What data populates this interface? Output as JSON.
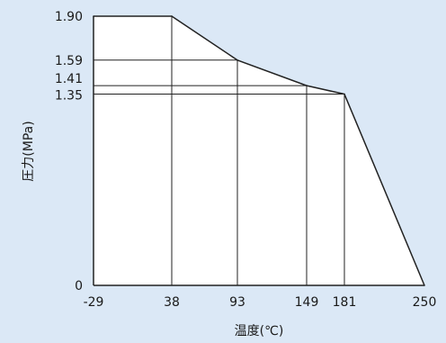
{
  "chart_data": {
    "type": "line",
    "title": "",
    "xlabel": "温度(℃)",
    "ylabel": "圧力(MPa)",
    "x_ticks": [
      "-29",
      "38",
      "93",
      "149",
      "181",
      "250"
    ],
    "y_ticks": [
      "0",
      "1.35",
      "1.41",
      "1.59",
      "1.90"
    ],
    "xlim": [
      -29,
      250
    ],
    "ylim": [
      0,
      1.9
    ],
    "grid": "vertical and horizontal reference lines at each tick",
    "series": [
      {
        "x": [
          -29,
          38,
          93,
          149,
          181,
          250
        ],
        "y": [
          1.9,
          1.9,
          1.59,
          1.41,
          1.35,
          0
        ]
      }
    ]
  },
  "colors": {
    "background": "#dbe8f6",
    "plot_fill": "#ffffff",
    "line": "#222222"
  }
}
